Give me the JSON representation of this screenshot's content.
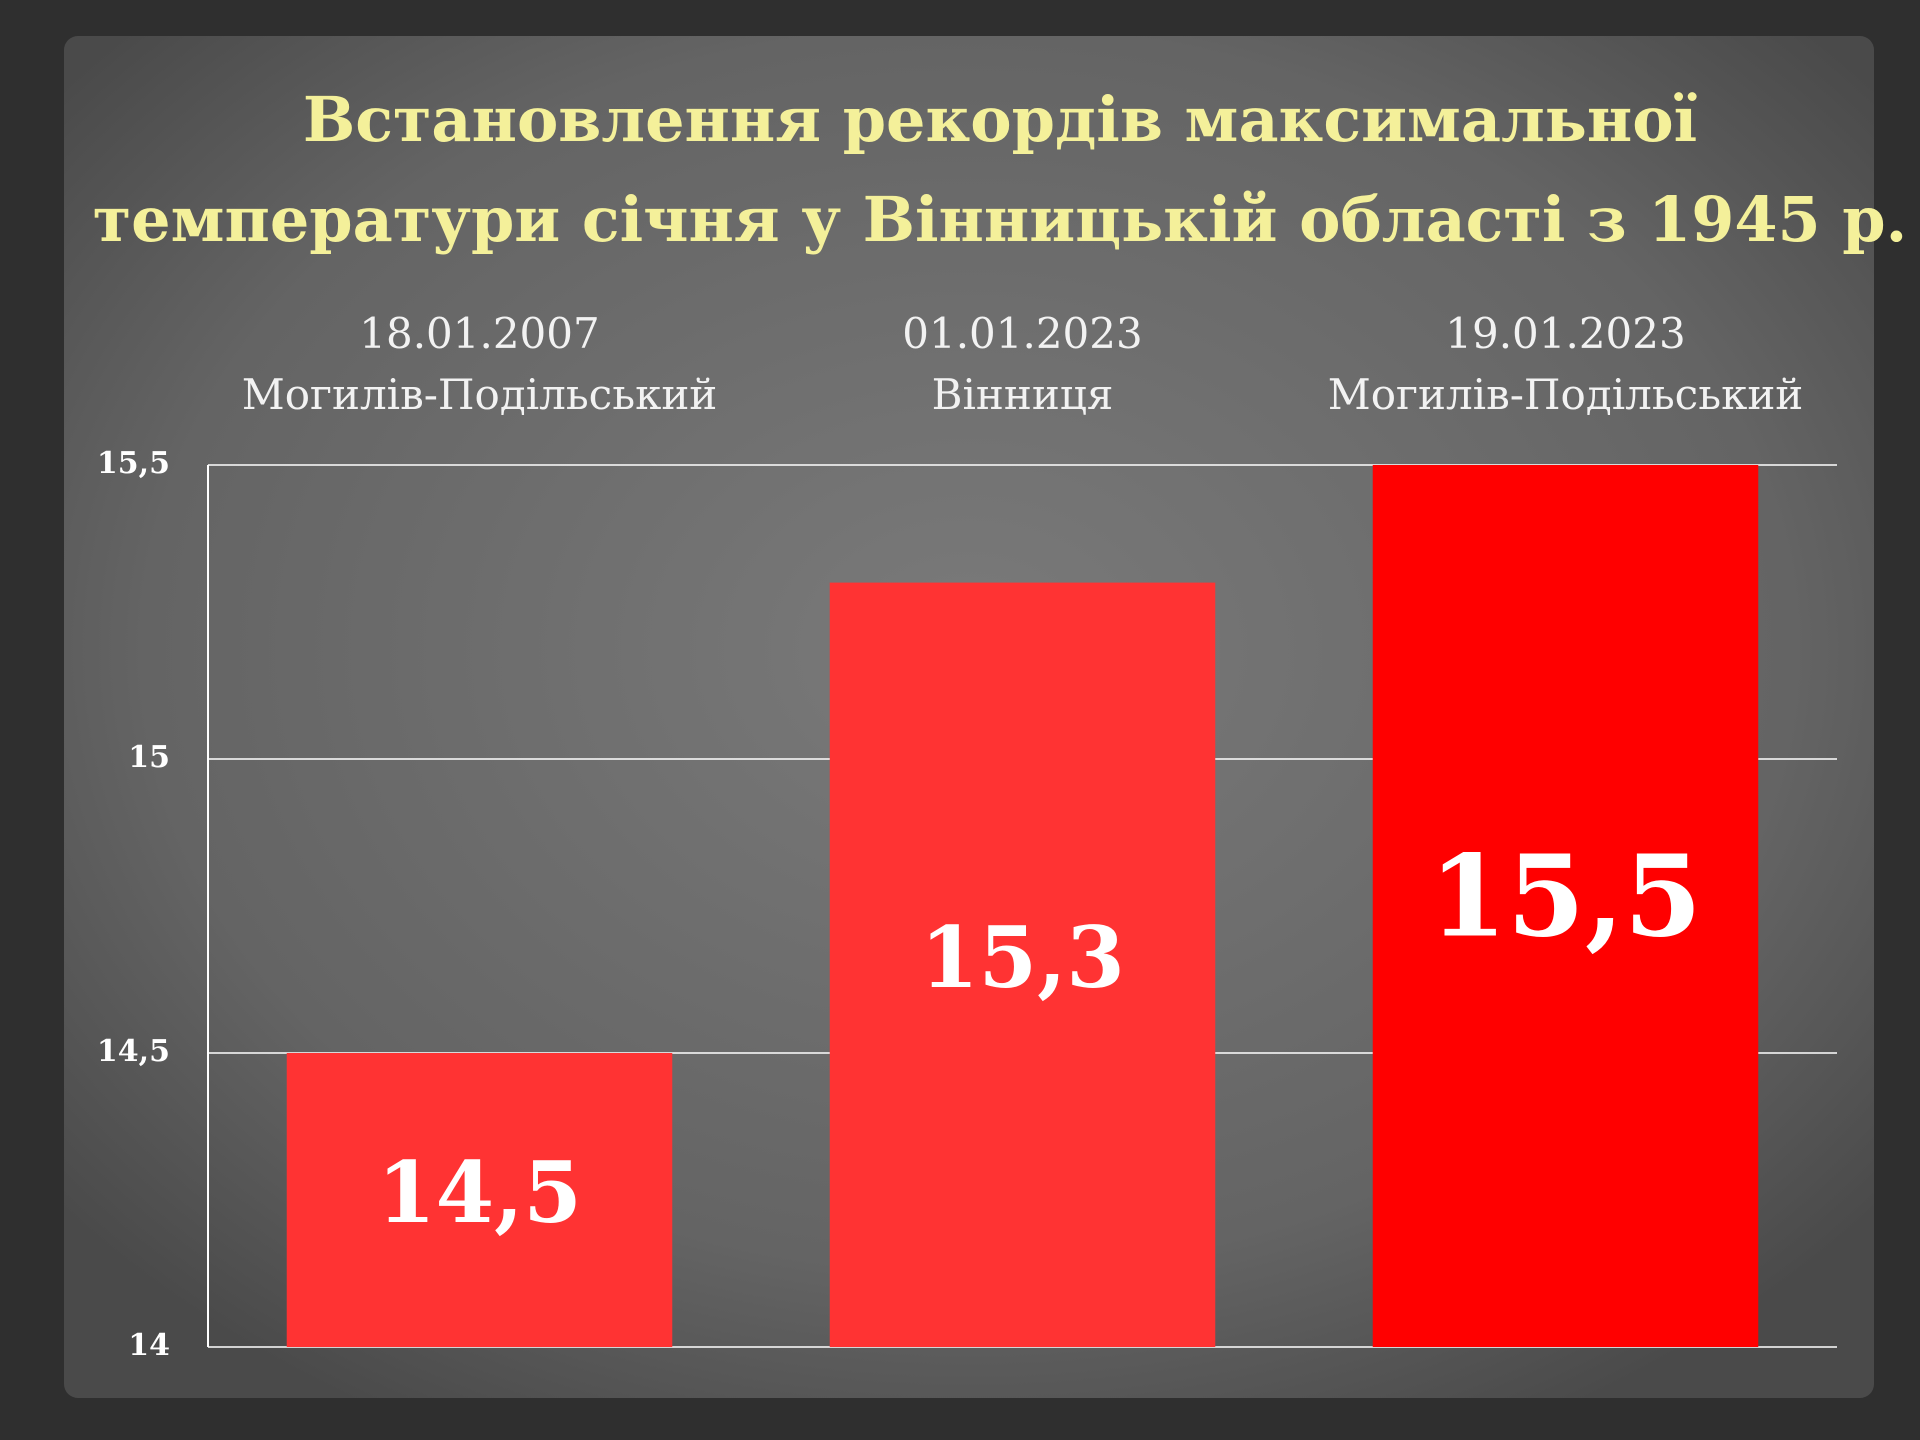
{
  "chart_data": {
    "type": "bar",
    "title": [
      "Встановлення рекордів максимальної",
      "температури січня у Вінницькій області з 1945 р."
    ],
    "categories": [
      [
        "18.01.2007",
        "Могилів-Подільський"
      ],
      [
        "01.01.2023",
        "Вінниця"
      ],
      [
        "19.01.2023",
        "Могилів-Подільський"
      ]
    ],
    "values": [
      14.5,
      15.3,
      15.5
    ],
    "value_labels": [
      "14,5",
      "15,3",
      "15,5"
    ],
    "colors": [
      "#ff3333",
      "#ff3333",
      "#ff0000"
    ],
    "ylim": [
      14,
      15.5
    ],
    "yticks": [
      14,
      {
        "value": 14.5,
        "label": "14,5"
      },
      15,
      {
        "value": 15.5,
        "label": "15,5"
      }
    ],
    "grid": true
  }
}
